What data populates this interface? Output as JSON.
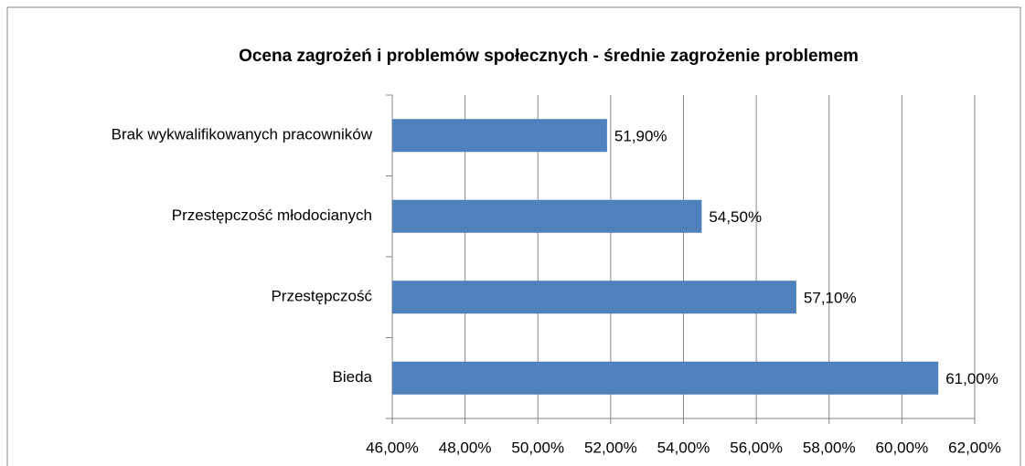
{
  "chart_data": {
    "type": "bar",
    "orientation": "horizontal",
    "title": "Ocena zagrożeń i problemów społecznych  -  średnie  zagrożenie problemem",
    "categories": [
      "Brak wykwalifikowanych pracowników",
      "Przestępczość młodocianych",
      "Przestępczość",
      "Bieda"
    ],
    "values": [
      51.9,
      54.5,
      57.1,
      61.0
    ],
    "value_labels": [
      "51,90%",
      "54,50%",
      "57,10%",
      "61,00%"
    ],
    "color": "#4f81bd",
    "xlim": [
      46,
      62
    ],
    "xticks": [
      {
        "value": 46,
        "label": "46,00%"
      },
      {
        "value": 48,
        "label": "48,00%"
      },
      {
        "value": 50,
        "label": "50,00%"
      },
      {
        "value": 52,
        "label": "52,00%"
      },
      {
        "value": 54,
        "label": "54,00%"
      },
      {
        "value": 56,
        "label": "56,00%"
      },
      {
        "value": 58,
        "label": "58,00%"
      },
      {
        "value": 60,
        "label": "60,00%"
      },
      {
        "value": 62,
        "label": "62,00%"
      }
    ],
    "grid": true
  }
}
